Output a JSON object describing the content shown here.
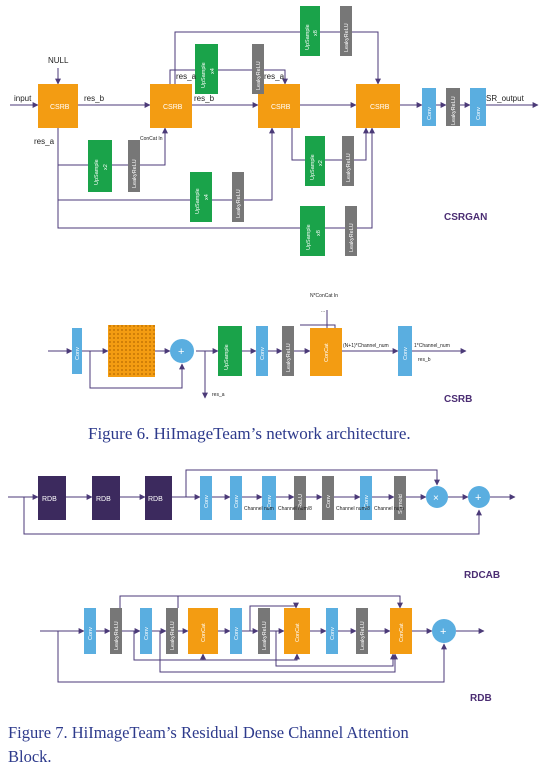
{
  "colors": {
    "orange": "#f39c12",
    "blue": "#5aaee0",
    "green": "#1aa34a",
    "gray": "#777777",
    "purple": "#3c2a5e",
    "line": "#4b3a78",
    "caption": "#2d3a8c"
  },
  "fig6": {
    "title": "CSRGAN",
    "input": "input",
    "output": "SR_output",
    "null": "NULL",
    "res_a": "res_a",
    "res_b": "res_b",
    "concat_in": "ConCat In",
    "csrb": "CSRB",
    "conv": "Conv",
    "leaky": "LeakyReLU",
    "upsample": "UpSample",
    "x2": "x2",
    "x4": "x4",
    "x8": "x8",
    "csrb_detail": {
      "title": "CSRB",
      "nconcat": "N*ConCat In",
      "dots": "...",
      "concat": "ConCat",
      "n1channel": "(N+1)*Channel_num",
      "onechannel": "1*Channel_num",
      "res_b": "res_b",
      "res_a": "res_a"
    },
    "caption": "Figure 6. HiImageTeam’s network architecture."
  },
  "fig7": {
    "rdcab": {
      "title": "RDCAB",
      "rdb": "RDB",
      "conv": "Conv",
      "relu": "ReLU",
      "sigmoid": "Sigmoid",
      "channel_num": "Channel num",
      "channel_num8": "Channel num/8",
      "x": "×",
      "plus": "+"
    },
    "rdb": {
      "title": "RDB",
      "conv": "Conv",
      "leaky": "LeakyReLU",
      "concat": "ConCat",
      "plus": "+"
    },
    "caption_l1": "Figure 7. HiImageTeam’s Residual Dense Channel Attention",
    "caption_l2": "Block."
  }
}
